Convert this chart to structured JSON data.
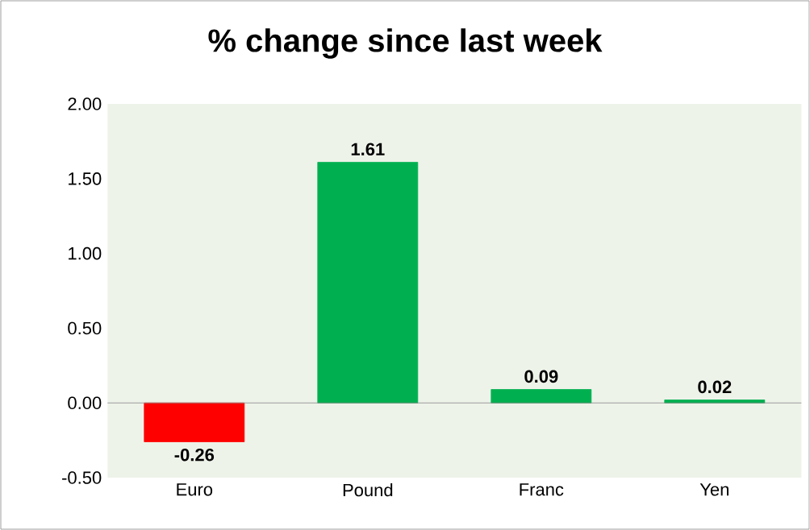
{
  "chart_data": {
    "type": "bar",
    "title": "% change since last week",
    "categories": [
      "Euro",
      "Pound",
      "Franc",
      "Yen"
    ],
    "values": [
      -0.26,
      1.61,
      0.09,
      0.02
    ],
    "colors": [
      "#ff0000",
      "#00b050",
      "#00b050",
      "#00b050"
    ],
    "value_labels": [
      "-0.26",
      "1.61",
      "0.09",
      "0.02"
    ],
    "ylim": [
      -0.5,
      2.0
    ],
    "yticks": [
      {
        "value": -0.5,
        "label": "-0.50"
      },
      {
        "value": 0,
        "label": "0.00"
      },
      {
        "value": 0.5,
        "label": "0.50"
      },
      {
        "value": 1.0,
        "label": "1.00"
      },
      {
        "value": 1.5,
        "label": "1.50"
      },
      {
        "value": 2.0,
        "label": "2.00"
      }
    ]
  }
}
